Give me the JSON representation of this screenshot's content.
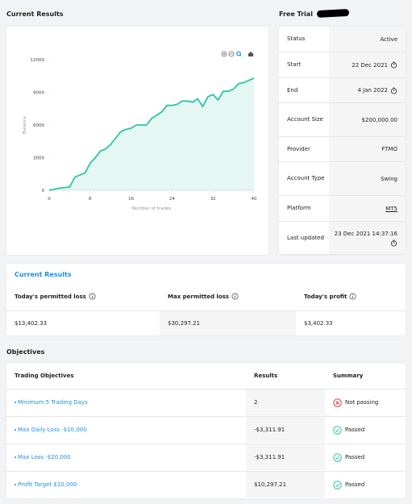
{
  "header": {
    "left_title": "Current Results",
    "right_title": "Free Trial"
  },
  "chart_data": {
    "type": "line",
    "x_label": "Number of trades",
    "y_label": "Balance",
    "x": [
      0,
      1,
      2,
      3,
      4,
      5,
      6,
      7,
      8,
      9,
      10,
      11,
      12,
      13,
      14,
      15,
      16,
      17,
      18,
      19,
      20,
      21,
      22,
      23,
      24,
      25,
      26,
      27,
      28,
      29,
      30,
      31,
      32,
      33,
      34,
      35,
      36,
      37,
      38,
      39,
      40
    ],
    "series": [
      {
        "color": "#2ec4a6",
        "values": [
          0,
          100,
          200,
          250,
          300,
          1200,
          1400,
          1600,
          2500,
          3000,
          3600,
          3800,
          4200,
          4800,
          5400,
          5600,
          5700,
          6000,
          6000,
          6000,
          6600,
          6900,
          7200,
          7800,
          7800,
          7900,
          8200,
          8200,
          8100,
          8400,
          7700,
          8600,
          8800,
          8300,
          9100,
          9100,
          9300,
          9800,
          9900,
          10100,
          10300
        ]
      }
    ],
    "xlim": [
      0,
      40
    ],
    "xticks": [
      0,
      8,
      16,
      24,
      32,
      40
    ],
    "ylim": [
      0,
      12000
    ],
    "yticks": [
      0,
      3000,
      6000,
      9000,
      12000
    ],
    "grid": false
  },
  "account": {
    "rows": [
      {
        "label": "Status",
        "value": "Active"
      },
      {
        "label": "Start",
        "value": "22 Dec 2021"
      },
      {
        "label": "End",
        "value": "4 Jan 2022"
      },
      {
        "label": "Account Size",
        "value": "$200,000.00"
      },
      {
        "label": "Provider",
        "value": "FTMO"
      },
      {
        "label": "Account Type",
        "value": "Swing"
      },
      {
        "label": "Platform",
        "value": "MT5"
      },
      {
        "label": "Last updated",
        "value": "23 Dec 2021 14:37:16"
      }
    ]
  },
  "current_results": {
    "title": "Current Results",
    "headers": [
      "Today's permitted loss",
      "Max permitted loss",
      "Today's profit"
    ],
    "values": [
      "$13,402.33",
      "$30,297.21",
      "$3,402.33"
    ]
  },
  "objectives": {
    "title": "Objectives",
    "headers": [
      "Trading Objectives",
      "Results",
      "Summary"
    ],
    "rows": [
      {
        "objective": "Minimum 5 Trading Days",
        "result": "2",
        "summary": "Not passing",
        "passed": false
      },
      {
        "objective": "Max Daily Loss -$10,000",
        "result": "-$3,311.91",
        "summary": "Passed",
        "passed": true
      },
      {
        "objective": "Max Loss -$20,000",
        "result": "-$3,311.91",
        "summary": "Passed",
        "passed": true
      },
      {
        "objective": "Profit Target $10,000",
        "result": "$10,297.21",
        "summary": "Passed",
        "passed": true
      }
    ]
  }
}
